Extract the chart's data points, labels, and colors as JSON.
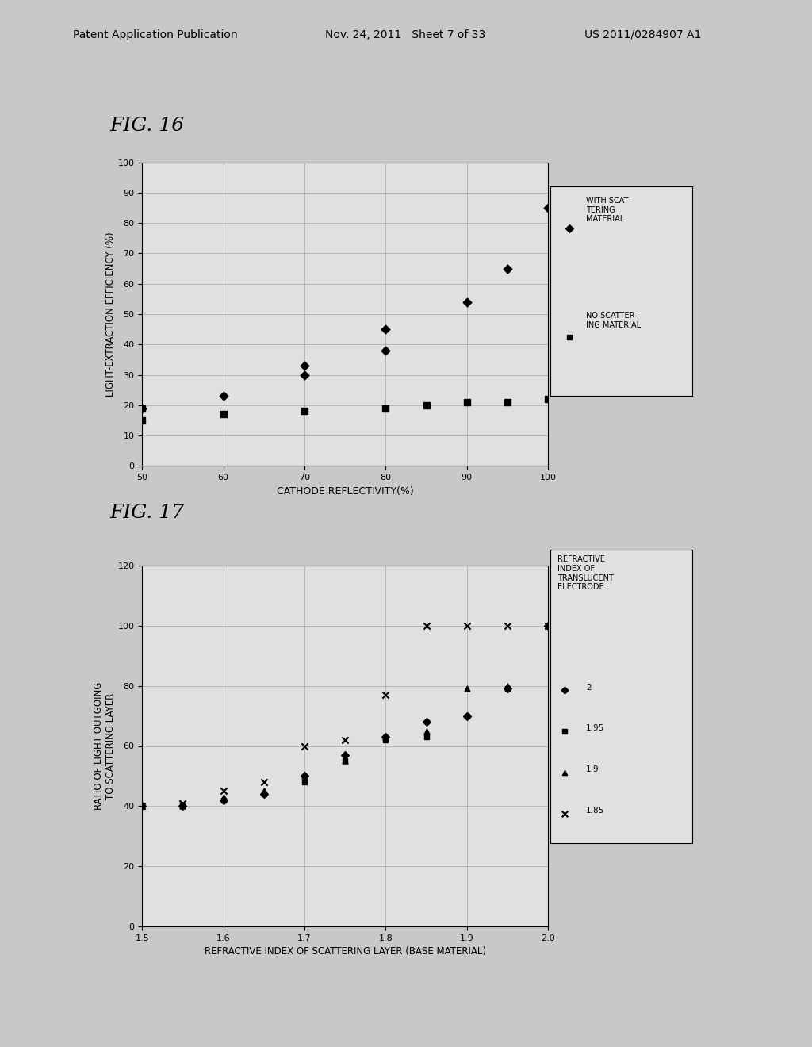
{
  "fig16": {
    "title": "FIG. 16",
    "xlabel": "CATHODE REFLECTIVITY(%)",
    "ylabel": "LIGHT-EXTRACTION EFFICIENCY (%)",
    "xlim": [
      50,
      100
    ],
    "ylim": [
      0,
      100
    ],
    "xticks": [
      50,
      60,
      70,
      80,
      90,
      100
    ],
    "yticks": [
      0,
      10,
      20,
      30,
      40,
      50,
      60,
      70,
      80,
      90,
      100
    ],
    "series_diamond": {
      "x": [
        50,
        60,
        70,
        70,
        80,
        80,
        90,
        95,
        100
      ],
      "y": [
        19,
        23,
        30,
        33,
        38,
        45,
        54,
        65,
        85
      ],
      "label": "WITH SCAT-\nTERING\nMATERIAL",
      "marker": "D",
      "color": "black"
    },
    "series_square": {
      "x": [
        50,
        50,
        60,
        70,
        80,
        85,
        90,
        95,
        100
      ],
      "y": [
        19,
        15,
        17,
        18,
        19,
        20,
        21,
        21,
        22
      ],
      "label": "NO SCATTER-\nING MATERIAL",
      "marker": "s",
      "color": "black"
    }
  },
  "fig17": {
    "title": "FIG. 17",
    "xlabel": "REFRACTIVE INDEX OF SCATTERING LAYER (BASE MATERIAL)",
    "ylabel": "RATIO OF LIGHT OUTGOING\nTO SCATTERING LAYER",
    "xlim": [
      1.5,
      2.0
    ],
    "ylim": [
      0,
      120
    ],
    "xticks": [
      1.5,
      1.6,
      1.7,
      1.8,
      1.9,
      2.0
    ],
    "yticks": [
      0,
      20,
      40,
      60,
      80,
      100,
      120
    ],
    "legend_title": "REFRACTIVE\nINDEX OF\nTRANSLUCENT\nELECTRODE",
    "series_2": {
      "x": [
        1.5,
        1.55,
        1.6,
        1.65,
        1.7,
        1.75,
        1.8,
        1.85,
        1.9,
        1.95,
        2.0
      ],
      "y": [
        40,
        40,
        42,
        44,
        50,
        57,
        63,
        68,
        70,
        79,
        100
      ],
      "label": "2",
      "marker": "D"
    },
    "series_195": {
      "x": [
        1.5,
        1.55,
        1.6,
        1.65,
        1.7,
        1.75,
        1.8,
        1.85,
        1.9,
        1.95,
        2.0
      ],
      "y": [
        40,
        40,
        42,
        44,
        48,
        55,
        62,
        63,
        70,
        79,
        100
      ],
      "label": "1.95",
      "marker": "s"
    },
    "series_19": {
      "x": [
        1.5,
        1.55,
        1.6,
        1.65,
        1.7,
        1.75,
        1.8,
        1.85,
        1.9,
        1.95,
        2.0
      ],
      "y": [
        40,
        40,
        43,
        45,
        50,
        55,
        63,
        65,
        79,
        80,
        100
      ],
      "label": "1.9",
      "marker": "^"
    },
    "series_185": {
      "x": [
        1.5,
        1.55,
        1.6,
        1.65,
        1.7,
        1.75,
        1.8,
        1.85,
        1.9,
        1.95,
        2.0
      ],
      "y": [
        40,
        41,
        45,
        48,
        60,
        62,
        77,
        100,
        100,
        100,
        100
      ],
      "label": "1.85",
      "marker": "x"
    }
  },
  "background_color": "#c8c8c8",
  "paper_color": "#e0e0e0",
  "header_left": "Patent Application Publication",
  "header_mid": "Nov. 24, 2011   Sheet 7 of 33",
  "header_right": "US 2011/0284907 A1"
}
